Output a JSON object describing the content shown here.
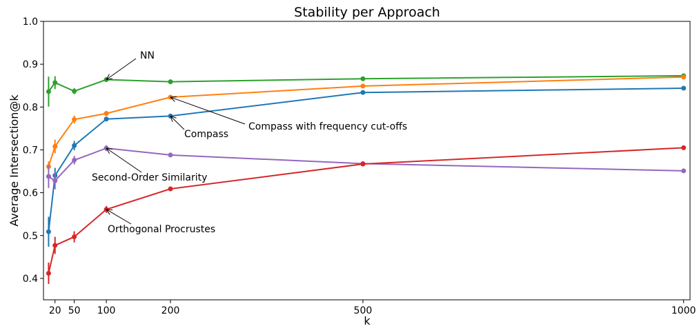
{
  "chart_data": {
    "type": "line",
    "title": "Stability per Approach",
    "xlabel": "k",
    "ylabel": "Average Intersection@k",
    "xlim": [
      2,
      1010
    ],
    "ylim": [
      0.35,
      1.0
    ],
    "x_ticks": [
      20,
      50,
      100,
      200,
      500,
      1000
    ],
    "y_ticks": [
      0.4,
      0.5,
      0.6,
      0.7,
      0.8,
      0.9,
      1.0
    ],
    "grid": false,
    "x": [
      10,
      20,
      50,
      100,
      200,
      500,
      1000
    ],
    "series": [
      {
        "name": "NN",
        "color": "#2ca02c",
        "values": [
          0.836,
          0.857,
          0.837,
          0.864,
          0.859,
          0.866,
          0.873
        ],
        "err": [
          0.035,
          0.015,
          0.007,
          0.004,
          0.002,
          0.002,
          0.002
        ]
      },
      {
        "name": "Compass with frequency cut-offs",
        "color": "#ff7f0e",
        "values": [
          0.661,
          0.708,
          0.771,
          0.785,
          0.823,
          0.849,
          0.87
        ],
        "err": [
          0.012,
          0.016,
          0.009,
          0.006,
          0.003,
          0.002,
          0.002
        ]
      },
      {
        "name": "Compass",
        "color": "#1f77b4",
        "values": [
          0.509,
          0.64,
          0.71,
          0.772,
          0.779,
          0.834,
          0.844
        ],
        "err": [
          0.035,
          0.018,
          0.011,
          0.004,
          0.003,
          0.002,
          0.002
        ]
      },
      {
        "name": "Second-Order Similarity",
        "color": "#9467bd",
        "values": [
          0.638,
          0.628,
          0.676,
          0.704,
          0.688,
          0.668,
          0.651
        ],
        "err": [
          0.027,
          0.02,
          0.01,
          0.007,
          0.003,
          0.002,
          0.002
        ]
      },
      {
        "name": "Orthogonal Procrustes",
        "color": "#d62728",
        "values": [
          0.412,
          0.477,
          0.497,
          0.561,
          0.609,
          0.667,
          0.705
        ],
        "err": [
          0.025,
          0.02,
          0.013,
          0.008,
          0.004,
          0.002,
          0.002
        ]
      }
    ],
    "annotations": [
      {
        "text": "NN",
        "series": 0,
        "point_x": 100
      },
      {
        "text": "Compass with frequency cut-offs",
        "series": 1,
        "point_x": 200
      },
      {
        "text": "Compass",
        "series": 2,
        "point_x": 200
      },
      {
        "text": "Second-Order Similarity",
        "series": 3,
        "point_x": 100
      },
      {
        "text": "Orthogonal Procrustes",
        "series": 4,
        "point_x": 100
      }
    ]
  }
}
